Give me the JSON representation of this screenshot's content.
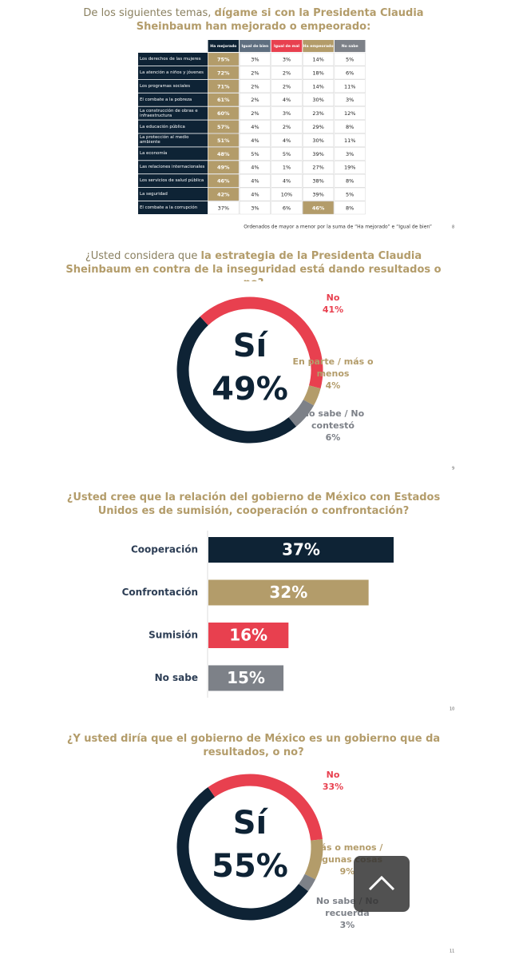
{
  "table": {
    "title_parts": [
      "De los siguientes temas, ",
      "dígame si con la Presidenta Claudia Sheinbaum han mejorado o empeorado:"
    ],
    "headers": [
      "Ha mejorado",
      "Igual de bien",
      "Igual de mal",
      "Ha empeorado",
      "No sabe"
    ],
    "rows": [
      [
        "Los derechos de las mujeres",
        "75%",
        "3%",
        "3%",
        "14%",
        "5%"
      ],
      [
        "La atención a niños y jóvenes",
        "72%",
        "2%",
        "2%",
        "18%",
        "6%"
      ],
      [
        "Los programas sociales",
        "71%",
        "2%",
        "2%",
        "14%",
        "11%"
      ],
      [
        "El combate a la pobreza",
        "61%",
        "2%",
        "4%",
        "30%",
        "3%"
      ],
      [
        "La construcción de obras e infraestructura",
        "60%",
        "2%",
        "3%",
        "23%",
        "12%"
      ],
      [
        "La educación pública",
        "57%",
        "4%",
        "2%",
        "29%",
        "8%"
      ],
      [
        "La protección al medio ambiente",
        "51%",
        "4%",
        "4%",
        "30%",
        "11%"
      ],
      [
        "La economía",
        "48%",
        "5%",
        "5%",
        "39%",
        "3%"
      ],
      [
        "Las relaciones internacionales",
        "49%",
        "4%",
        "1%",
        "27%",
        "19%"
      ],
      [
        "Los servicios de salud pública",
        "46%",
        "4%",
        "4%",
        "38%",
        "8%"
      ],
      [
        "La seguridad",
        "42%",
        "4%",
        "10%",
        "39%",
        "5%"
      ],
      [
        "El combate a la corrupción",
        "37%",
        "3%",
        "6%",
        "46%",
        "8%"
      ]
    ],
    "footnote": "Ordenados de mayor a menor por la suma de “Ha mejorado” e “Igual de bien”"
  },
  "chart_data": [
    {
      "type": "donut",
      "title_parts": [
        "¿Usted considera que ",
        "la estrategia de la Presidenta Claudia Sheinbaum en contra de la inseguridad está dando resultados o no?"
      ],
      "categories": [
        "Sí",
        "No",
        "En parte / más o menos",
        "No sabe / No contestó"
      ],
      "values": [
        49,
        41,
        4,
        6
      ],
      "value_labels": [
        "49%",
        "41%",
        "4%",
        "6%"
      ],
      "colors": [
        "#0e2335",
        "#e8404f",
        "#b39c6a",
        "#7d8188"
      ]
    },
    {
      "type": "bar",
      "title": "¿Usted cree que la relación del gobierno de México con Estados Unidos es de sumisión, cooperación o confrontación?",
      "categories": [
        "Cooperación",
        "Confrontación",
        "Sumisión",
        "No sabe"
      ],
      "values": [
        37,
        32,
        16,
        15
      ],
      "value_labels": [
        "37%",
        "32%",
        "16%",
        "15%"
      ],
      "colors": [
        "#0e2335",
        "#b39c6a",
        "#e8404f",
        "#7d8188"
      ]
    },
    {
      "type": "donut",
      "title": "¿Y usted diría que el gobierno de México es un gobierno que da resultados, o no?",
      "categories": [
        "Sí",
        "No",
        "Más o menos / Algunas cosas",
        "No sabe / No recuerda"
      ],
      "values": [
        55,
        33,
        9,
        3
      ],
      "value_labels": [
        "55%",
        "33%",
        "9%",
        "3%"
      ],
      "colors": [
        "#0e2335",
        "#e8404f",
        "#b39c6a",
        "#7d8188"
      ]
    }
  ],
  "page_numbers": [
    "8",
    "9",
    "10",
    "11"
  ]
}
